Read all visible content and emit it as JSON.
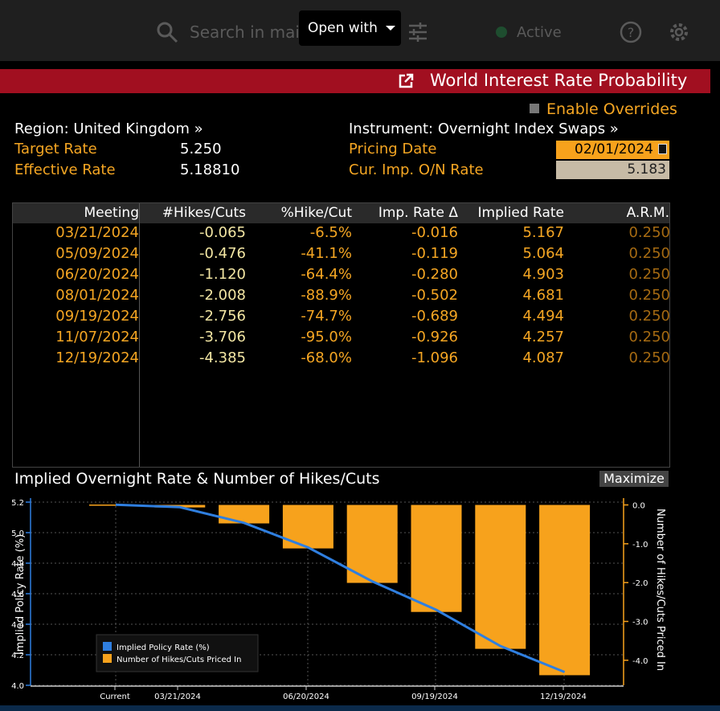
{
  "topbar": {
    "search_placeholder": "Search in mai",
    "open_with": "Open with",
    "active": "Active"
  },
  "title": "World Interest Rate Probability",
  "enable_overrides": "Enable Overrides",
  "region": "Region: United Kingdom »",
  "instrument": "Instrument: Overnight Index Swaps »",
  "target_rate_label": "Target Rate",
  "target_rate_value": "5.250",
  "effective_rate_label": "Effective Rate",
  "effective_rate_value": "5.18810",
  "pricing_date_label": "Pricing Date",
  "pricing_date_value": "02/01/2024",
  "cur_rate_label": "Cur. Imp. O/N Rate",
  "cur_rate_value": "5.183",
  "table": {
    "headers": [
      "Meeting",
      "#Hikes/Cuts",
      "%Hike/Cut",
      "Imp. Rate Δ",
      "Implied Rate",
      "A.R.M."
    ],
    "rows": [
      [
        "03/21/2024",
        "-0.065",
        "-6.5%",
        "-0.016",
        "5.167",
        "0.250"
      ],
      [
        "05/09/2024",
        "-0.476",
        "-41.1%",
        "-0.119",
        "5.064",
        "0.250"
      ],
      [
        "06/20/2024",
        "-1.120",
        "-64.4%",
        "-0.280",
        "4.903",
        "0.250"
      ],
      [
        "08/01/2024",
        "-2.008",
        "-88.9%",
        "-0.502",
        "4.681",
        "0.250"
      ],
      [
        "09/19/2024",
        "-2.756",
        "-74.7%",
        "-0.689",
        "4.494",
        "0.250"
      ],
      [
        "11/07/2024",
        "-3.706",
        "-95.0%",
        "-0.926",
        "4.257",
        "0.250"
      ],
      [
        "12/19/2024",
        "-4.385",
        "-68.0%",
        "-1.096",
        "4.087",
        "0.250"
      ]
    ]
  },
  "chart_title": "Implied Overnight Rate & Number of Hikes/Cuts",
  "maximize": "Maximize",
  "colors": {
    "accent": "#f5a623",
    "line": "#2f7fe0",
    "title_bar": "#a10f20"
  },
  "chart_data": {
    "type": "bar",
    "categories": [
      "Current",
      "03/21/2024",
      "05/09/2024",
      "06/20/2024",
      "08/01/2024",
      "09/19/2024",
      "11/07/2024",
      "12/19/2024"
    ],
    "x_tick_labels": [
      "Current",
      "03/21/2024",
      "06/20/2024",
      "09/19/2024",
      "12/19/2024"
    ],
    "series": [
      {
        "name": "Implied Policy Rate (%)",
        "type": "line",
        "axis": "left",
        "values": [
          5.183,
          5.167,
          5.064,
          4.903,
          4.681,
          4.494,
          4.257,
          4.087
        ]
      },
      {
        "name": "Number of Hikes/Cuts Priced In",
        "type": "bar",
        "axis": "right",
        "values": [
          0,
          -0.065,
          -0.476,
          -1.12,
          -2.008,
          -2.756,
          -3.706,
          -4.385
        ]
      }
    ],
    "ylabel": "Implied Policy Rate (%)",
    "y2label": "Number of Hikes/Cuts Priced In",
    "ylim": [
      4.0,
      5.2
    ],
    "yticks": [
      "5.2",
      "5.0",
      "4.8",
      "4.6",
      "4.4",
      "4.2",
      "4.0"
    ],
    "y2lim": [
      -4.5,
      0.0
    ],
    "y2ticks": [
      "0.0",
      "-1.0",
      "-2.0",
      "-3.0",
      "-4.0"
    ],
    "grid": true,
    "legend": "bottom-left"
  }
}
